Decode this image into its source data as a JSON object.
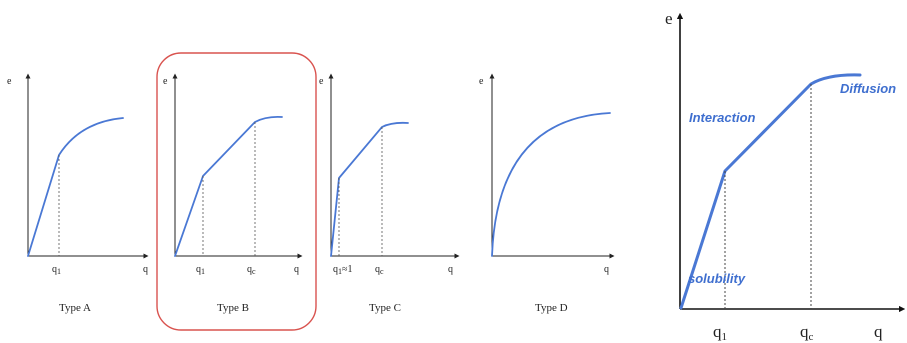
{
  "panels": [
    {
      "type_label": "Type A",
      "y_label": "e",
      "x_label": "q",
      "tick_main": "q",
      "tick_sub": "1"
    },
    {
      "type_label": "Type B",
      "y_label": "e",
      "x_label": "q",
      "tick1_main": "q",
      "tick1_sub": "1",
      "tick2_main": "q",
      "tick2_sub": "c"
    },
    {
      "type_label": "Type C",
      "y_label": "e",
      "x_label": "q",
      "tick1_main": "q",
      "tick1_sub": "1",
      "tick1_suffix": "≈1",
      "tick2_main": "q",
      "tick2_sub": "c"
    },
    {
      "type_label": "Type D",
      "y_label": "e",
      "x_label": "q"
    }
  ],
  "detail": {
    "y_label": "e",
    "x_label": "q",
    "tick1_main": "q",
    "tick1_sub": "1",
    "tick2_main": "q",
    "tick2_sub": "c",
    "annotations": {
      "interaction": "Interaction",
      "diffusion": "Diffusion",
      "solubility": "solubility"
    }
  },
  "colors": {
    "curve": "#4a78d4",
    "annotation": "#3f6fcf",
    "highlight": "#d9534f"
  }
}
